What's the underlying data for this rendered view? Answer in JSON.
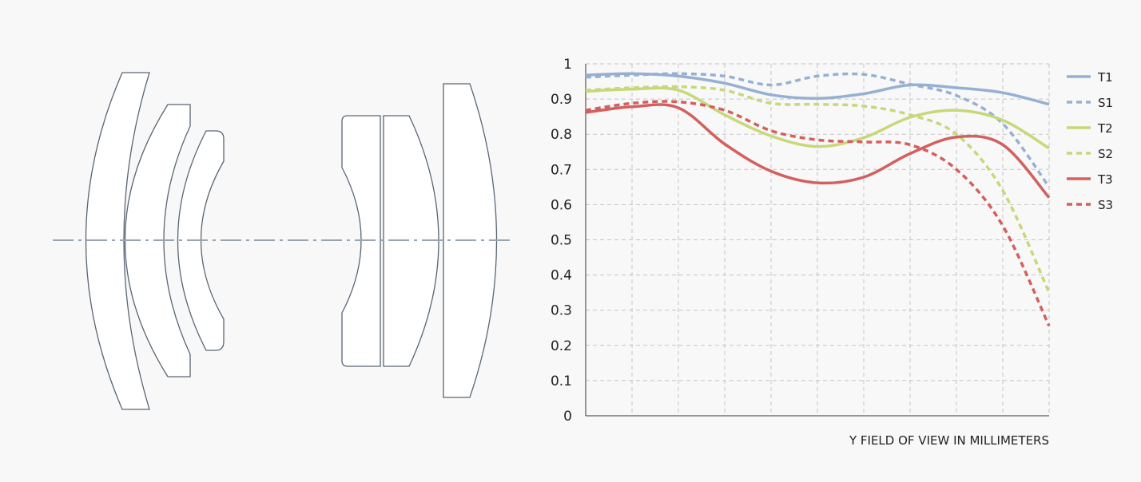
{
  "chart_data": {
    "type": "line",
    "title": "",
    "xlabel": "Y FIELD OF VIEW IN MILLIMETERS",
    "ylabel": "",
    "ylim": [
      0,
      1
    ],
    "xlim": [
      0,
      20
    ],
    "y_ticks": [
      "0",
      "0.1",
      "0.2",
      "0.3",
      "0.4",
      "0.5",
      "0.6",
      "0.7",
      "0.8",
      "0.9",
      "1"
    ],
    "grid": true,
    "legend_position": "right",
    "series": [
      {
        "name": "T1",
        "color": "#96b0d2",
        "style": "solid",
        "x": [
          0,
          2,
          4,
          6,
          8,
          10,
          12,
          14,
          16,
          18,
          20
        ],
        "y": [
          0.968,
          0.972,
          0.965,
          0.945,
          0.912,
          0.902,
          0.915,
          0.94,
          0.932,
          0.918,
          0.885
        ]
      },
      {
        "name": "S1",
        "color": "#96b0d2",
        "style": "dashed",
        "x": [
          0,
          2,
          4,
          6,
          8,
          10,
          12,
          14,
          16,
          18,
          20
        ],
        "y": [
          0.962,
          0.968,
          0.972,
          0.965,
          0.94,
          0.965,
          0.97,
          0.942,
          0.91,
          0.83,
          0.65
        ]
      },
      {
        "name": "T2",
        "color": "#c6d878",
        "style": "solid",
        "x": [
          0,
          2,
          4,
          6,
          8,
          10,
          12,
          14,
          16,
          18,
          20
        ],
        "y": [
          0.922,
          0.928,
          0.925,
          0.855,
          0.795,
          0.765,
          0.79,
          0.848,
          0.868,
          0.84,
          0.76
        ]
      },
      {
        "name": "S2",
        "color": "#c6d878",
        "style": "dashed",
        "x": [
          0,
          2,
          4,
          6,
          8,
          10,
          12,
          14,
          16,
          18,
          20
        ],
        "y": [
          0.925,
          0.932,
          0.935,
          0.925,
          0.888,
          0.885,
          0.88,
          0.855,
          0.8,
          0.64,
          0.35
        ]
      },
      {
        "name": "T3",
        "color": "#d35f5f",
        "style": "solid",
        "x": [
          0,
          2,
          4,
          6,
          8,
          10,
          12,
          14,
          16,
          18,
          20
        ],
        "y": [
          0.862,
          0.878,
          0.875,
          0.772,
          0.695,
          0.662,
          0.678,
          0.745,
          0.792,
          0.77,
          0.62
        ]
      },
      {
        "name": "S3",
        "color": "#d35f5f",
        "style": "dashed",
        "x": [
          0,
          2,
          4,
          6,
          8,
          10,
          12,
          14,
          16,
          18,
          20
        ],
        "y": [
          0.868,
          0.888,
          0.892,
          0.868,
          0.81,
          0.784,
          0.778,
          0.77,
          0.7,
          0.54,
          0.255
        ]
      }
    ]
  }
}
